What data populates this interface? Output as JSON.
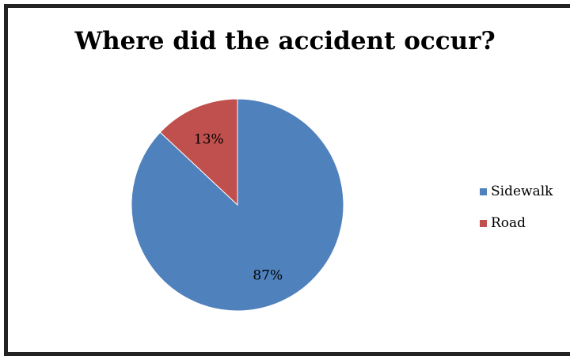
{
  "chart_data": {
    "type": "pie",
    "title": "Where did the accident occur?",
    "categories": [
      "Sidewalk",
      "Road"
    ],
    "values": [
      87,
      13
    ],
    "data_labels": [
      "87%",
      "13%"
    ],
    "colors": [
      "#4f81bd",
      "#c0504d"
    ],
    "legend": {
      "placement": "right",
      "entries": [
        "Sidewalk",
        "Road"
      ]
    }
  }
}
